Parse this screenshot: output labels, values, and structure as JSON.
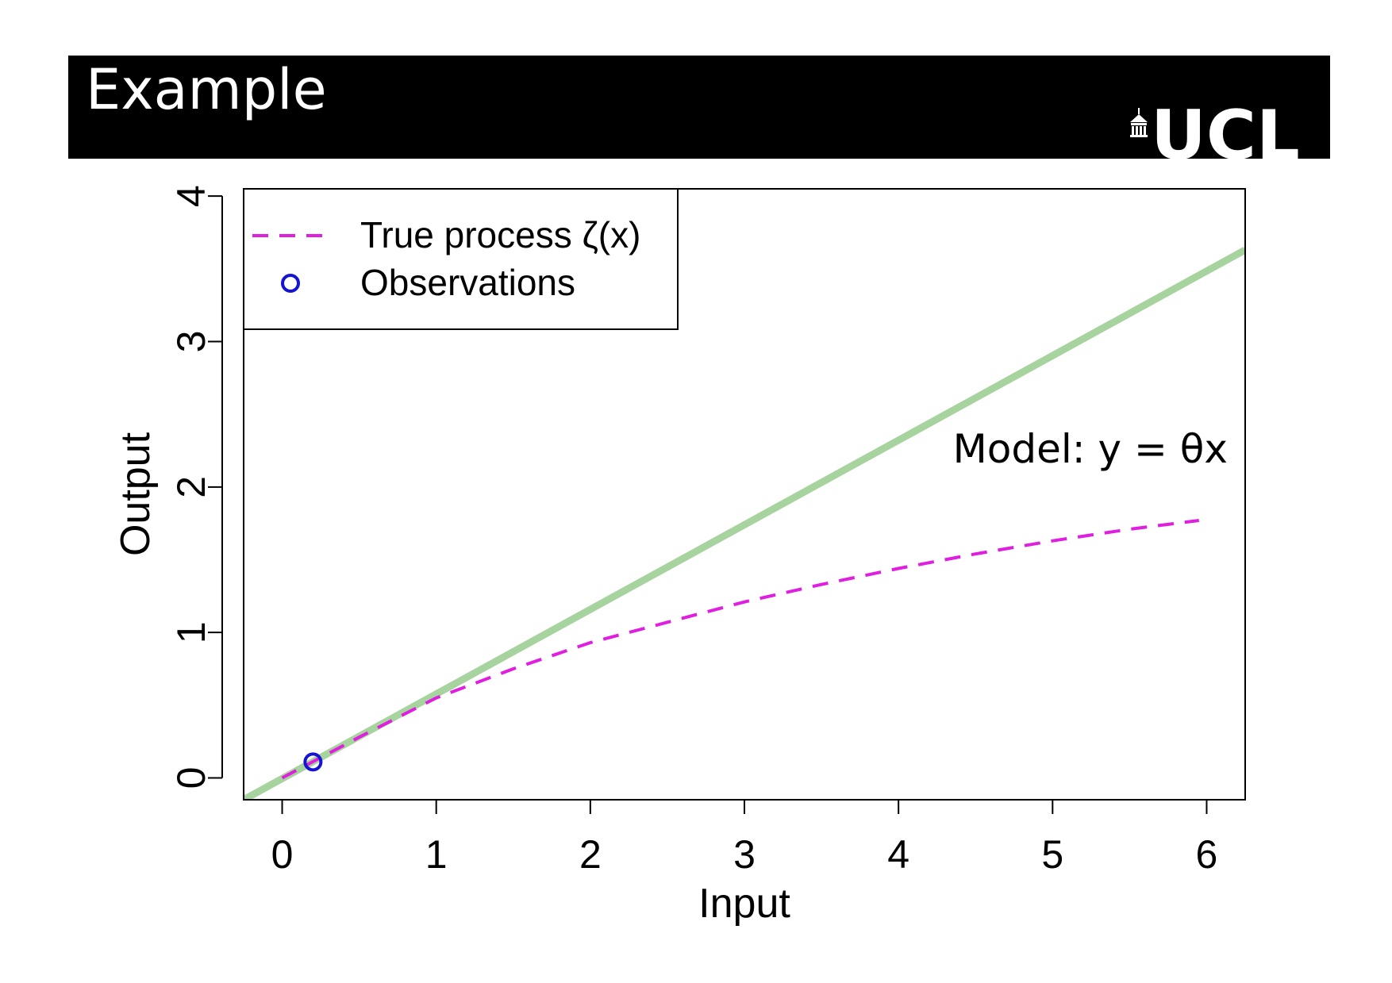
{
  "slide": {
    "title": "Example",
    "logo_text": "UCL"
  },
  "colors": {
    "header_bg": "#000000",
    "model_line": "#a7d39e",
    "true_process": "#e01ee0",
    "observation": "#1414d2"
  },
  "chart_data": {
    "type": "line",
    "xlabel": "Input",
    "ylabel": "Output",
    "xlim": [
      -0.25,
      6.25
    ],
    "ylim": [
      -0.15,
      4.05
    ],
    "xticks": [
      0,
      1,
      2,
      3,
      4,
      5,
      6
    ],
    "yticks": [
      0,
      1,
      2,
      3,
      4
    ],
    "legend": {
      "position": "top-left",
      "entries": [
        {
          "label": "True process ζ(x)",
          "style": "dashed",
          "color": "#e01ee0"
        },
        {
          "label": "Observations",
          "style": "open-circle",
          "color": "#1414d2"
        }
      ]
    },
    "annotation": "Model: y = θx",
    "model_line": {
      "x": [
        -0.25,
        6.25
      ],
      "y": [
        -0.15,
        3.63
      ]
    },
    "series": [
      {
        "name": "True process ζ(x)",
        "x": [
          0,
          0.5,
          1,
          1.5,
          2,
          2.5,
          3,
          3.5,
          4,
          4.5,
          5,
          5.5,
          5.95
        ],
        "y": [
          0,
          0.28,
          0.55,
          0.75,
          0.93,
          1.07,
          1.21,
          1.33,
          1.44,
          1.54,
          1.63,
          1.71,
          1.77
        ]
      }
    ],
    "observations": {
      "x": [
        0.2
      ],
      "y": [
        0.11
      ]
    }
  }
}
